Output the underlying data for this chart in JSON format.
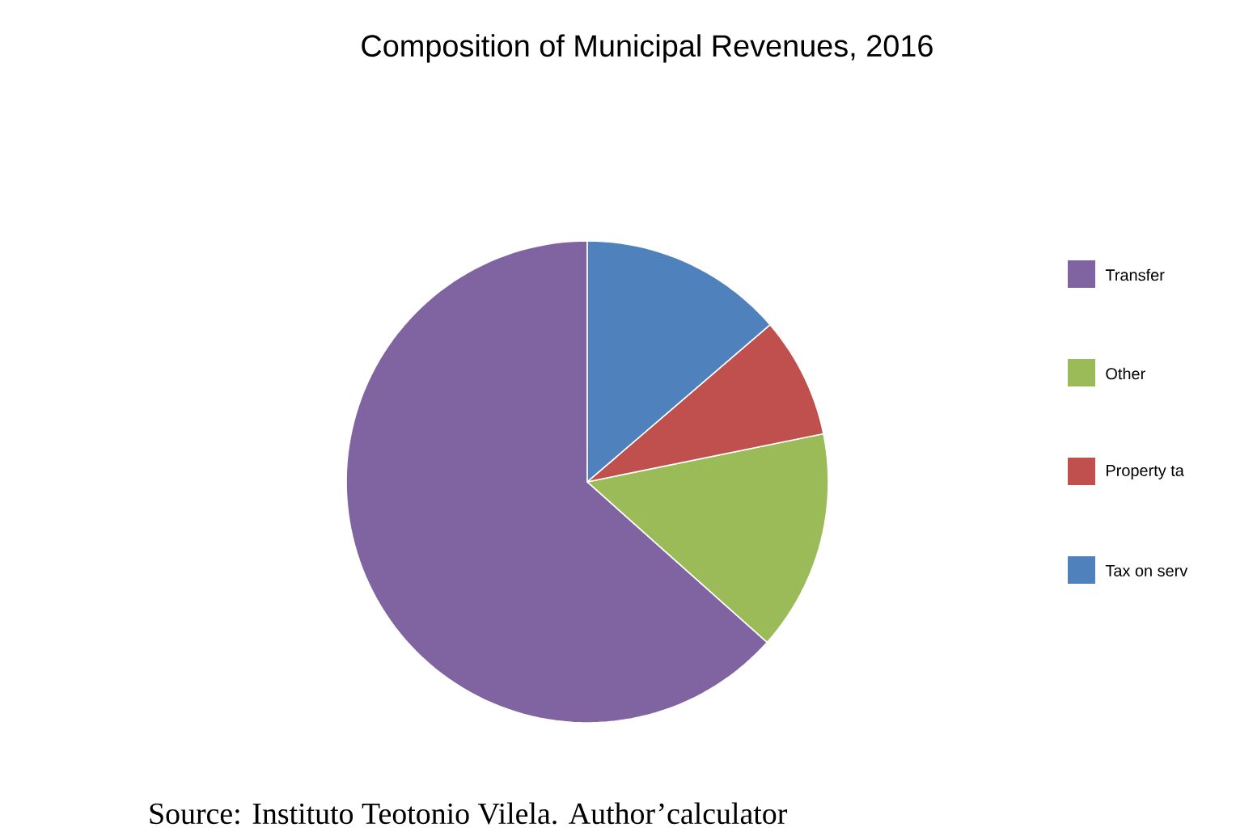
{
  "chart_data": {
    "type": "pie",
    "title": "Composition of Municipal Revenues, 2016",
    "categories": [
      "Transfer",
      "Other",
      "Property ta",
      "Tax on serv"
    ],
    "values": [
      63.4,
      14.8,
      8.1,
      13.7
    ],
    "colors": [
      "#8064a2",
      "#9bbb59",
      "#c0504d",
      "#4f81bd"
    ],
    "legend": "right",
    "annotations": [
      "Source: Instituto Teotonio Vilela. Author’calculator"
    ]
  }
}
